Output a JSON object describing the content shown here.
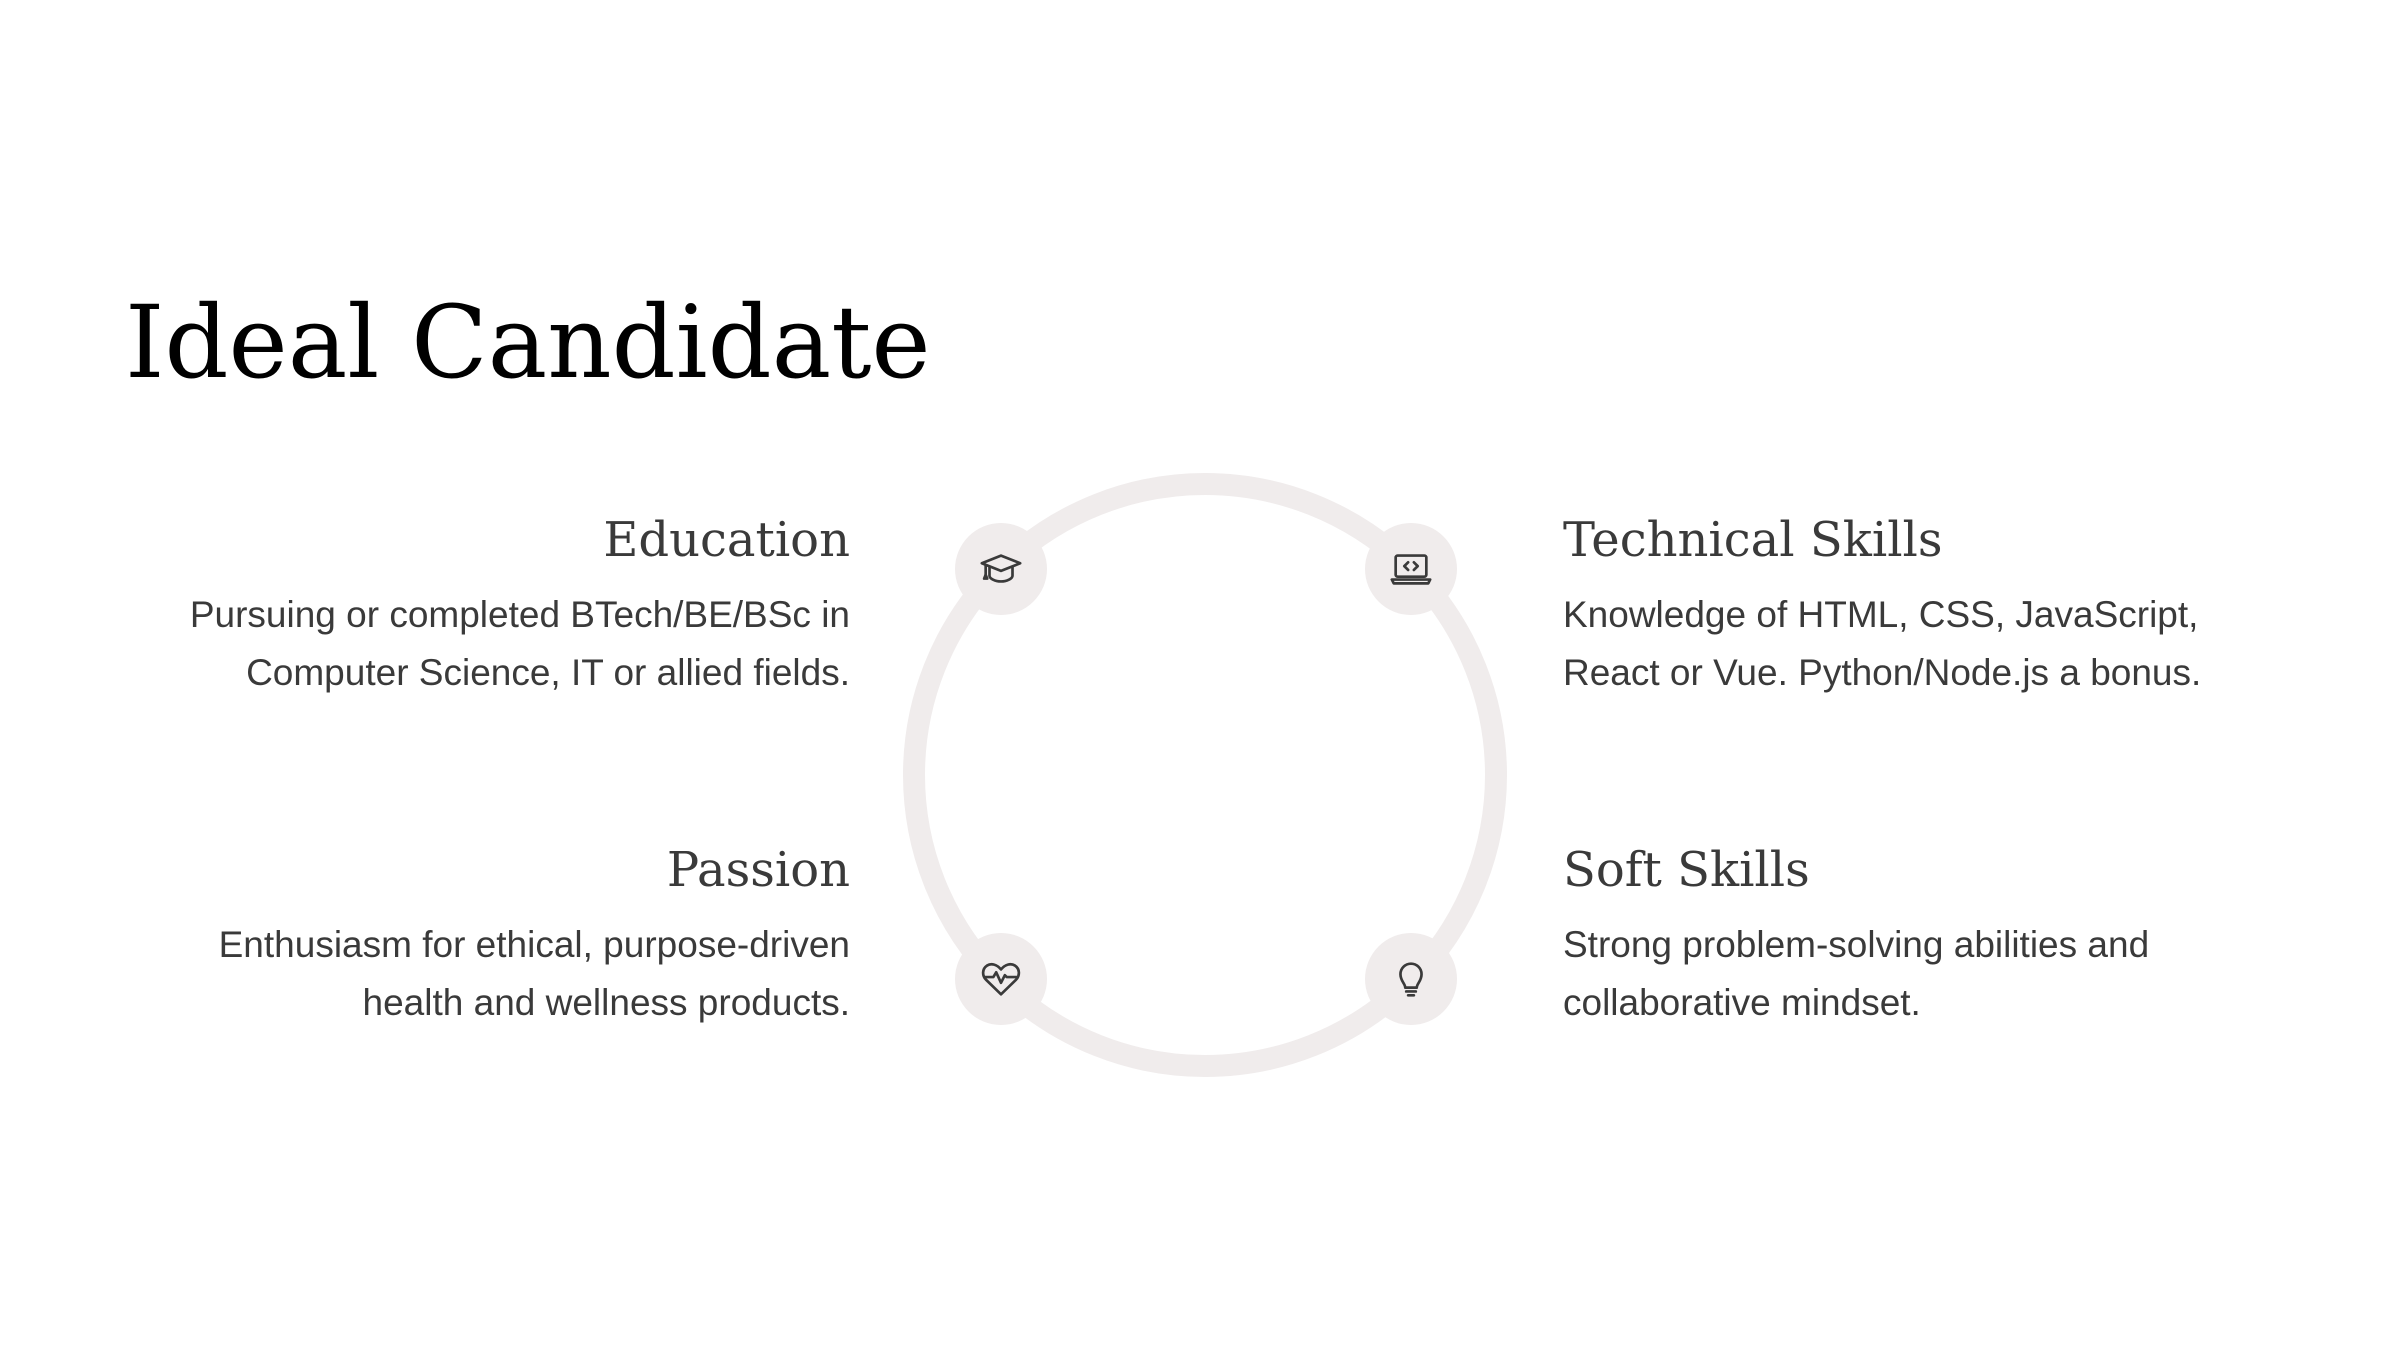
{
  "slide": {
    "title": "Ideal Candidate",
    "accent_ring_color": "#f0ecec",
    "icon_color": "#3a3a3a",
    "items": [
      {
        "heading": "Education",
        "description": "Pursuing or completed BTech/BE/BSc in Computer Science, IT or allied fields.",
        "icon": "graduation-cap-icon"
      },
      {
        "heading": "Technical Skills",
        "description": "Knowledge of HTML, CSS, JavaScript, React or Vue. Python/Node.js a bonus.",
        "icon": "laptop-code-icon"
      },
      {
        "heading": "Passion",
        "description": "Enthusiasm for ethical, purpose-driven health and wellness products.",
        "icon": "heartbeat-icon"
      },
      {
        "heading": "Soft Skills",
        "description": "Strong problem-solving abilities and collaborative mindset.",
        "icon": "lightbulb-icon"
      }
    ]
  }
}
